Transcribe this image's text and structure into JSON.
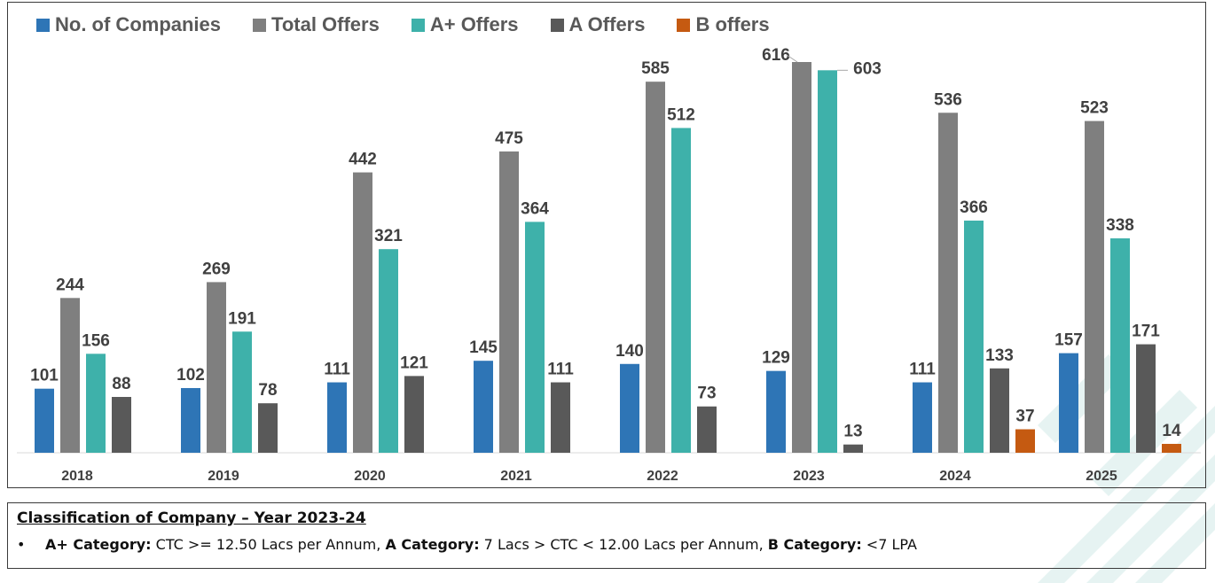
{
  "chart_data": {
    "type": "bar",
    "categories": [
      "2018",
      "2019",
      "2020",
      "2021",
      "2022",
      "2023",
      "2024",
      "2025"
    ],
    "series": [
      {
        "name": "No. of Companies",
        "color": "#2e75b6",
        "values": [
          101,
          102,
          111,
          145,
          140,
          129,
          111,
          157
        ]
      },
      {
        "name": "Total Offers",
        "color": "#7f7f7f",
        "values": [
          244,
          269,
          442,
          475,
          585,
          616,
          536,
          523
        ]
      },
      {
        "name": "A+ Offers",
        "color": "#3eb1aa",
        "values": [
          156,
          191,
          321,
          364,
          512,
          603,
          null,
          null
        ]
      },
      {
        "name": "A Offers",
        "color": "#595959",
        "values": [
          88,
          78,
          121,
          111,
          73,
          13,
          133,
          171
        ]
      },
      {
        "name": "B offers",
        "color": "#c55a11",
        "values": [
          null,
          null,
          null,
          null,
          null,
          null,
          37,
          14
        ]
      }
    ],
    "special_2024_2025": {
      "aplus_values": [
        366,
        338
      ]
    },
    "ylim": [
      0,
      650
    ],
    "legend_position": "top-left",
    "grid": false
  },
  "note": {
    "title": "Classification of Company – Year 2023-24",
    "bullet": "•",
    "aplus_label": "A+ Category:",
    "aplus_text": " CTC >= 12.50 Lacs per Annum, ",
    "a_label": "A Category:",
    "a_text": " 7 Lacs > CTC < 12.00 Lacs per Annum, ",
    "b_label": "B Category:",
    "b_text": " <7 LPA"
  }
}
